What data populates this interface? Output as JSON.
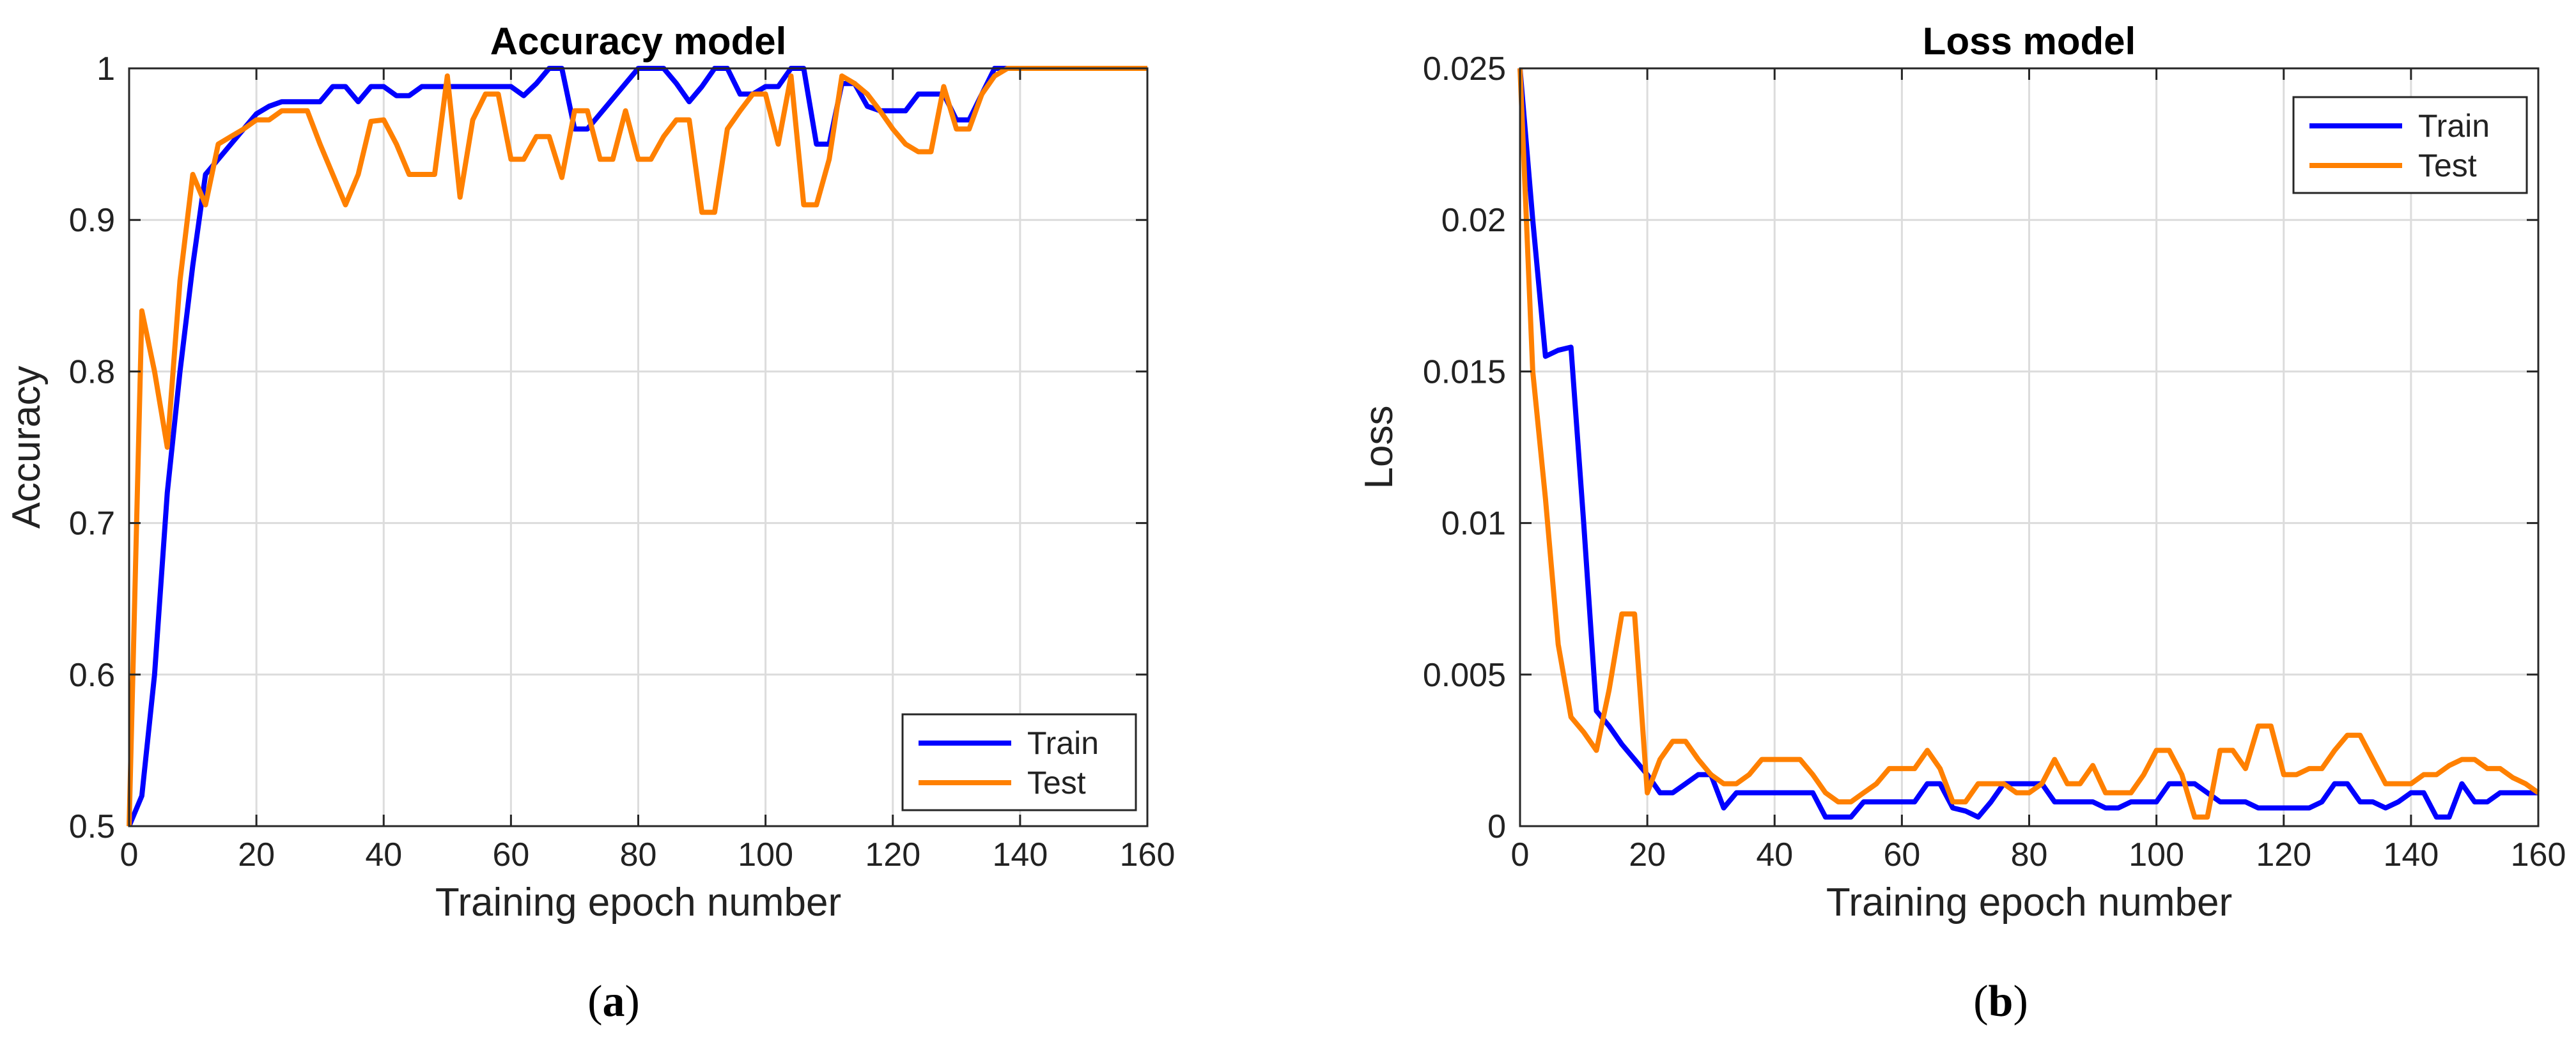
{
  "chart_data": [
    {
      "id": "accuracy",
      "type": "line",
      "caption": "a",
      "title": "Accuracy model",
      "xlabel": "Training epoch number",
      "ylabel": "Accuracy",
      "xlim": [
        0,
        160
      ],
      "ylim": [
        0.5,
        1
      ],
      "xticks": [
        0,
        20,
        40,
        60,
        80,
        100,
        120,
        140,
        160
      ],
      "yticks": [
        0.5,
        0.6,
        0.7,
        0.8,
        0.9,
        1
      ],
      "ytick_labels": [
        "0.5",
        "0.6",
        "0.7",
        "0.8",
        "0.9",
        "1"
      ],
      "grid": true,
      "legend_position": "bottom-right",
      "colors": {
        "Train": "#0000ff",
        "Test": "#ff8000"
      },
      "series": [
        {
          "name": "Train",
          "x": [
            0,
            2,
            4,
            6,
            8,
            10,
            12,
            14,
            16,
            18,
            20,
            22,
            24,
            26,
            28,
            30,
            32,
            34,
            36,
            38,
            40,
            42,
            44,
            46,
            48,
            50,
            52,
            54,
            56,
            58,
            60,
            62,
            64,
            66,
            68,
            70,
            72,
            74,
            76,
            78,
            80,
            82,
            84,
            86,
            88,
            90,
            92,
            94,
            96,
            98,
            100,
            102,
            104,
            106,
            108,
            110,
            112,
            114,
            116,
            118,
            120,
            122,
            124,
            126,
            128,
            130,
            132,
            134,
            136,
            138,
            140,
            142,
            144,
            146,
            148,
            150,
            152,
            154,
            156,
            158,
            160
          ],
          "y": [
            0.5,
            0.52,
            0.6,
            0.72,
            0.8,
            0.87,
            0.93,
            0.94,
            0.95,
            0.96,
            0.97,
            0.975,
            0.978,
            0.978,
            0.978,
            0.978,
            0.988,
            0.988,
            0.978,
            0.988,
            0.988,
            0.982,
            0.982,
            0.988,
            0.988,
            0.988,
            0.988,
            0.988,
            0.988,
            0.988,
            0.988,
            0.982,
            0.99,
            1,
            1,
            0.96,
            0.96,
            0.97,
            0.98,
            0.99,
            1,
            1,
            1,
            0.99,
            0.978,
            0.988,
            1,
            1,
            0.983,
            0.983,
            0.988,
            0.988,
            1,
            1,
            0.95,
            0.95,
            0.99,
            0.99,
            0.975,
            0.972,
            0.972,
            0.972,
            0.983,
            0.983,
            0.983,
            0.966,
            0.966,
            0.983,
            1,
            1,
            1,
            1,
            1,
            1,
            1,
            1,
            1,
            1,
            1,
            1,
            1
          ]
        },
        {
          "name": "Test",
          "x": [
            0,
            2,
            4,
            6,
            8,
            10,
            12,
            14,
            16,
            18,
            20,
            22,
            24,
            26,
            28,
            30,
            32,
            34,
            36,
            38,
            40,
            42,
            44,
            46,
            48,
            50,
            52,
            54,
            56,
            58,
            60,
            62,
            64,
            66,
            68,
            70,
            72,
            74,
            76,
            78,
            80,
            82,
            84,
            86,
            88,
            90,
            92,
            94,
            96,
            98,
            100,
            102,
            104,
            106,
            108,
            110,
            112,
            114,
            116,
            118,
            120,
            122,
            124,
            126,
            128,
            130,
            132,
            134,
            136,
            138,
            140,
            142,
            144,
            146,
            148,
            150,
            152,
            154,
            156,
            158,
            160
          ],
          "y": [
            0.5,
            0.84,
            0.8,
            0.75,
            0.86,
            0.93,
            0.91,
            0.95,
            0.955,
            0.96,
            0.966,
            0.966,
            0.972,
            0.972,
            0.972,
            0.95,
            0.93,
            0.91,
            0.93,
            0.965,
            0.966,
            0.95,
            0.93,
            0.93,
            0.93,
            0.995,
            0.915,
            0.966,
            0.983,
            0.983,
            0.94,
            0.94,
            0.955,
            0.955,
            0.928,
            0.972,
            0.972,
            0.94,
            0.94,
            0.972,
            0.94,
            0.94,
            0.955,
            0.966,
            0.966,
            0.905,
            0.905,
            0.96,
            0.972,
            0.983,
            0.983,
            0.95,
            0.995,
            0.91,
            0.91,
            0.94,
            0.995,
            0.99,
            0.983,
            0.972,
            0.96,
            0.95,
            0.945,
            0.945,
            0.988,
            0.96,
            0.96,
            0.983,
            0.995,
            1,
            1,
            1,
            1,
            1,
            1,
            1,
            1,
            1,
            1,
            1,
            1
          ]
        }
      ]
    },
    {
      "id": "loss",
      "type": "line",
      "caption": "b",
      "title": "Loss model",
      "xlabel": "Training epoch number",
      "ylabel": "Loss",
      "xlim": [
        0,
        160
      ],
      "ylim": [
        0,
        0.025
      ],
      "xticks": [
        0,
        20,
        40,
        60,
        80,
        100,
        120,
        140,
        160
      ],
      "yticks": [
        0,
        0.005,
        0.01,
        0.015,
        0.02,
        0.025
      ],
      "ytick_labels": [
        "0",
        "0.005",
        "0.01",
        "0.015",
        "0.02",
        "0.025"
      ],
      "grid": true,
      "legend_position": "top-right",
      "colors": {
        "Train": "#0000ff",
        "Test": "#ff8000"
      },
      "series": [
        {
          "name": "Train",
          "x": [
            0,
            2,
            4,
            6,
            8,
            10,
            12,
            14,
            16,
            18,
            20,
            22,
            24,
            26,
            28,
            30,
            32,
            34,
            36,
            38,
            40,
            42,
            44,
            46,
            48,
            50,
            52,
            54,
            56,
            58,
            60,
            62,
            64,
            66,
            68,
            70,
            72,
            74,
            76,
            78,
            80,
            82,
            84,
            86,
            88,
            90,
            92,
            94,
            96,
            98,
            100,
            102,
            104,
            106,
            108,
            110,
            112,
            114,
            116,
            118,
            120,
            122,
            124,
            126,
            128,
            130,
            132,
            134,
            136,
            138,
            140,
            142,
            144,
            146,
            148,
            150,
            152,
            154,
            156,
            158,
            160
          ],
          "y": [
            0.025,
            0.02,
            0.0155,
            0.0157,
            0.0158,
            0.01,
            0.0038,
            0.0033,
            0.0027,
            0.0022,
            0.0017,
            0.0011,
            0.0011,
            0.0014,
            0.0017,
            0.0017,
            0.0006,
            0.0011,
            0.0011,
            0.0011,
            0.0011,
            0.0011,
            0.0011,
            0.0011,
            0.0003,
            0.0003,
            0.0003,
            0.0008,
            0.0008,
            0.0008,
            0.0008,
            0.0008,
            0.0014,
            0.0014,
            0.0006,
            0.0005,
            0.0003,
            0.0008,
            0.0014,
            0.0014,
            0.0014,
            0.0014,
            0.0008,
            0.0008,
            0.0008,
            0.0008,
            0.0006,
            0.0006,
            0.0008,
            0.0008,
            0.0008,
            0.0014,
            0.0014,
            0.0014,
            0.0011,
            0.0008,
            0.0008,
            0.0008,
            0.0006,
            0.0006,
            0.0006,
            0.0006,
            0.0006,
            0.0008,
            0.0014,
            0.0014,
            0.0008,
            0.0008,
            0.0006,
            0.0008,
            0.0011,
            0.0011,
            0.0003,
            0.0003,
            0.0014,
            0.0008,
            0.0008,
            0.0011,
            0.0011,
            0.0011,
            0.0011
          ]
        },
        {
          "name": "Test",
          "x": [
            0,
            2,
            4,
            6,
            8,
            10,
            12,
            14,
            16,
            18,
            20,
            22,
            24,
            26,
            28,
            30,
            32,
            34,
            36,
            38,
            40,
            42,
            44,
            46,
            48,
            50,
            52,
            54,
            56,
            58,
            60,
            62,
            64,
            66,
            68,
            70,
            72,
            74,
            76,
            78,
            80,
            82,
            84,
            86,
            88,
            90,
            92,
            94,
            96,
            98,
            100,
            102,
            104,
            106,
            108,
            110,
            112,
            114,
            116,
            118,
            120,
            122,
            124,
            126,
            128,
            130,
            132,
            134,
            136,
            138,
            140,
            142,
            144,
            146,
            148,
            150,
            152,
            154,
            156,
            158,
            160
          ],
          "y": [
            0.025,
            0.015,
            0.0108,
            0.006,
            0.0036,
            0.0031,
            0.0025,
            0.0045,
            0.007,
            0.007,
            0.0011,
            0.0022,
            0.0028,
            0.0028,
            0.0022,
            0.0017,
            0.0014,
            0.0014,
            0.0017,
            0.0022,
            0.0022,
            0.0022,
            0.0022,
            0.0017,
            0.0011,
            0.0008,
            0.0008,
            0.0011,
            0.0014,
            0.0019,
            0.0019,
            0.0019,
            0.0025,
            0.0019,
            0.0008,
            0.0008,
            0.0014,
            0.0014,
            0.0014,
            0.0011,
            0.0011,
            0.0014,
            0.0022,
            0.0014,
            0.0014,
            0.002,
            0.0011,
            0.0011,
            0.0011,
            0.0017,
            0.0025,
            0.0025,
            0.0017,
            0.0003,
            0.0003,
            0.0025,
            0.0025,
            0.0019,
            0.0033,
            0.0033,
            0.0017,
            0.0017,
            0.0019,
            0.0019,
            0.0025,
            0.003,
            0.003,
            0.0022,
            0.0014,
            0.0014,
            0.0014,
            0.0017,
            0.0017,
            0.002,
            0.0022,
            0.0022,
            0.0019,
            0.0019,
            0.0016,
            0.0014,
            0.0011
          ]
        }
      ]
    }
  ]
}
